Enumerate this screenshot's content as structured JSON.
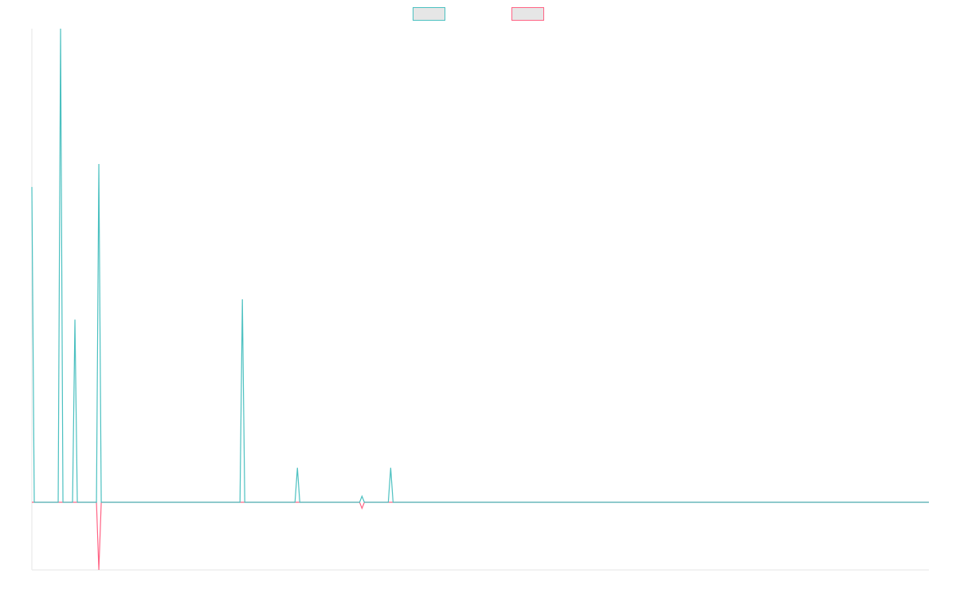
{
  "chart_data": {
    "type": "line",
    "title": "",
    "xlabel": "",
    "ylabel": "",
    "grid": false,
    "legend": {
      "placement": "top-center",
      "labels_visible": false
    },
    "x": [
      0,
      1,
      2,
      3,
      4,
      5,
      6,
      7,
      8,
      9,
      10,
      11,
      12,
      13,
      14,
      15,
      16,
      17,
      18,
      19,
      20,
      21,
      22,
      23,
      24,
      25,
      26,
      27,
      28,
      29,
      30,
      31,
      32,
      33,
      34,
      35,
      36,
      37,
      38,
      39,
      40,
      41,
      42,
      43,
      44,
      45,
      46,
      47,
      48,
      49,
      50,
      51,
      52,
      53,
      54,
      55,
      56,
      57,
      58,
      59,
      60,
      61,
      62,
      63,
      64,
      65,
      66,
      67,
      68,
      69,
      70,
      71,
      72,
      73,
      74,
      75,
      76,
      77,
      78,
      79,
      80,
      81,
      82,
      83,
      84,
      85,
      86,
      87,
      88,
      89,
      90,
      91,
      92,
      93,
      94,
      95,
      96,
      97,
      98,
      99,
      100,
      101,
      102,
      103,
      104,
      105,
      106,
      107,
      108,
      109,
      110,
      111,
      112,
      113,
      114,
      115,
      116,
      117,
      118,
      119,
      120,
      121,
      122,
      123,
      124,
      125,
      126,
      127,
      128,
      129,
      130,
      131,
      132,
      133,
      134,
      135,
      136,
      137,
      138,
      139,
      140,
      141,
      142,
      143,
      144,
      145,
      146,
      147,
      148,
      149,
      150,
      151,
      152,
      153,
      154,
      155,
      156,
      157,
      158,
      159,
      160,
      161,
      162,
      163,
      164,
      165,
      166,
      167,
      168,
      169,
      170,
      171,
      172,
      173,
      174,
      175,
      176,
      177,
      178,
      179,
      180,
      181,
      182,
      183,
      184,
      185,
      186,
      187,
      188,
      189,
      190,
      191,
      192,
      193,
      194,
      195,
      196,
      197,
      198,
      199,
      200,
      201,
      202,
      203,
      204,
      205,
      206,
      207,
      208,
      209,
      210,
      211,
      212,
      213,
      214,
      215,
      216,
      217,
      218,
      219,
      220,
      221,
      222,
      223,
      224,
      225,
      226,
      227,
      228,
      229,
      230,
      231,
      232,
      233,
      234,
      235,
      236,
      237,
      238,
      239,
      240,
      241,
      242,
      243,
      244,
      245,
      246,
      247,
      248,
      249,
      250,
      251,
      252,
      253,
      254,
      255,
      256,
      257,
      258,
      259,
      260,
      261,
      262,
      263,
      264,
      265,
      266,
      267,
      268,
      269,
      270,
      271,
      272,
      273,
      274,
      275,
      276,
      277,
      278,
      279,
      280,
      281,
      282,
      283,
      284,
      285,
      286,
      287,
      288,
      289,
      290,
      291,
      292,
      293,
      294,
      295,
      296,
      297,
      298,
      299,
      300,
      301,
      302,
      303,
      304,
      305,
      306,
      307,
      308,
      309,
      310,
      311,
      312,
      313,
      314,
      315,
      316,
      317,
      318,
      319,
      320,
      321,
      322,
      323,
      324,
      325,
      326,
      327,
      328,
      329,
      330,
      331,
      332,
      333,
      334,
      335,
      336,
      337,
      338,
      339,
      340,
      341,
      342,
      343,
      344,
      345,
      346,
      347,
      348,
      349,
      350,
      351,
      352,
      353,
      354,
      355,
      356,
      357,
      358,
      359,
      360,
      361,
      362,
      363,
      364,
      365,
      366,
      367,
      368,
      369,
      370,
      371,
      372,
      373,
      374,
      375
    ],
    "ylim": [
      -200,
      1400
    ],
    "series": [
      {
        "color": "#4bc0c0",
        "values": {
          "default": 0,
          "points": [
            [
              0,
              932
            ],
            [
              12,
              1400
            ],
            [
              18,
              540
            ],
            [
              28,
              1000
            ],
            [
              88,
              600
            ],
            [
              111,
              102
            ],
            [
              138,
              18
            ],
            [
              150,
              102
            ]
          ]
        }
      },
      {
        "color": "#ff6384",
        "values": {
          "default": 0,
          "points": [
            [
              28,
              -200
            ],
            [
              138,
              -18
            ]
          ]
        }
      }
    ]
  }
}
